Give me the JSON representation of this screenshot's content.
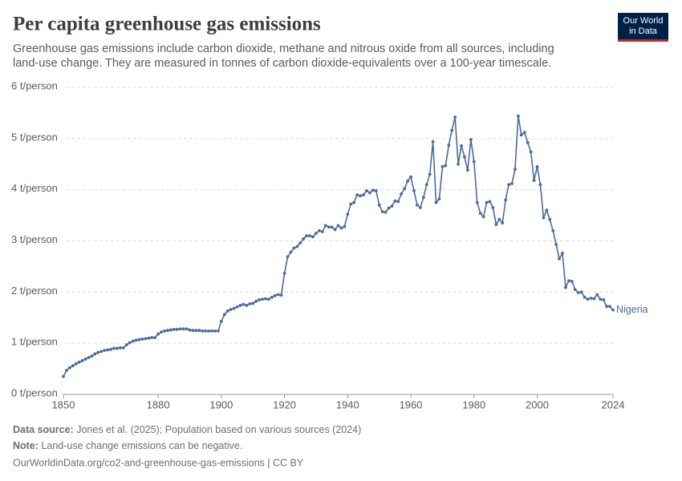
{
  "chart_data": {
    "type": "line",
    "title": "Per capita greenhouse gas emissions",
    "subtitle_lines": [
      "Greenhouse gas emissions include carbon dioxide, methane and nitrous oxide from all sources, including",
      "land-use change. They are measured in tonnes of carbon dioxide-equivalents over a 100-year timescale."
    ],
    "logo_lines": [
      "Our World",
      "in Data"
    ],
    "x": [
      1850,
      1851,
      1852,
      1853,
      1854,
      1855,
      1856,
      1857,
      1858,
      1859,
      1860,
      1861,
      1862,
      1863,
      1864,
      1865,
      1866,
      1867,
      1868,
      1869,
      1870,
      1871,
      1872,
      1873,
      1874,
      1875,
      1876,
      1877,
      1878,
      1879,
      1880,
      1881,
      1882,
      1883,
      1884,
      1885,
      1886,
      1887,
      1888,
      1889,
      1890,
      1891,
      1892,
      1893,
      1894,
      1895,
      1896,
      1897,
      1898,
      1899,
      1900,
      1901,
      1902,
      1903,
      1904,
      1905,
      1906,
      1907,
      1908,
      1909,
      1910,
      1911,
      1912,
      1913,
      1914,
      1915,
      1916,
      1917,
      1918,
      1919,
      1920,
      1921,
      1922,
      1923,
      1924,
      1925,
      1926,
      1927,
      1928,
      1929,
      1930,
      1931,
      1932,
      1933,
      1934,
      1935,
      1936,
      1937,
      1938,
      1939,
      1940,
      1941,
      1942,
      1943,
      1944,
      1945,
      1946,
      1947,
      1948,
      1949,
      1950,
      1951,
      1952,
      1953,
      1954,
      1955,
      1956,
      1957,
      1958,
      1959,
      1960,
      1961,
      1962,
      1963,
      1964,
      1965,
      1966,
      1967,
      1968,
      1969,
      1970,
      1971,
      1972,
      1973,
      1974,
      1975,
      1976,
      1977,
      1978,
      1979,
      1980,
      1981,
      1982,
      1983,
      1984,
      1985,
      1986,
      1987,
      1988,
      1989,
      1990,
      1991,
      1992,
      1993,
      1994,
      1995,
      1996,
      1997,
      1998,
      1999,
      2000,
      2001,
      2002,
      2003,
      2004,
      2005,
      2006,
      2007,
      2008,
      2009,
      2010,
      2011,
      2012,
      2013,
      2014,
      2015,
      2016,
      2017,
      2018,
      2019,
      2020,
      2021,
      2022,
      2023,
      2024
    ],
    "series": [
      {
        "name": "Nigeria",
        "color": "#4c6a9c",
        "values": [
          0.35,
          0.47,
          0.52,
          0.56,
          0.6,
          0.63,
          0.66,
          0.69,
          0.72,
          0.75,
          0.79,
          0.82,
          0.84,
          0.86,
          0.87,
          0.88,
          0.9,
          0.9,
          0.91,
          0.91,
          0.97,
          1.01,
          1.04,
          1.06,
          1.07,
          1.08,
          1.09,
          1.1,
          1.11,
          1.11,
          1.18,
          1.22,
          1.24,
          1.25,
          1.26,
          1.27,
          1.27,
          1.28,
          1.28,
          1.28,
          1.26,
          1.25,
          1.25,
          1.25,
          1.24,
          1.24,
          1.24,
          1.24,
          1.24,
          1.24,
          1.43,
          1.56,
          1.63,
          1.66,
          1.68,
          1.71,
          1.74,
          1.76,
          1.74,
          1.77,
          1.78,
          1.82,
          1.85,
          1.86,
          1.87,
          1.86,
          1.9,
          1.93,
          1.95,
          1.94,
          2.37,
          2.69,
          2.78,
          2.86,
          2.89,
          2.96,
          3.04,
          3.1,
          3.1,
          3.08,
          3.15,
          3.2,
          3.18,
          3.3,
          3.27,
          3.27,
          3.22,
          3.3,
          3.25,
          3.28,
          3.52,
          3.72,
          3.75,
          3.9,
          3.88,
          3.9,
          3.98,
          3.94,
          3.99,
          3.98,
          3.7,
          3.57,
          3.56,
          3.64,
          3.68,
          3.78,
          3.77,
          3.92,
          4.02,
          4.17,
          4.25,
          3.98,
          3.7,
          3.65,
          3.85,
          4.1,
          4.3,
          4.94,
          3.75,
          3.82,
          4.45,
          4.47,
          4.87,
          5.16,
          5.42,
          4.5,
          4.86,
          4.64,
          4.38,
          4.98,
          4.55,
          3.75,
          3.54,
          3.47,
          3.75,
          3.77,
          3.65,
          3.32,
          3.42,
          3.35,
          3.8,
          4.1,
          4.12,
          4.4,
          5.44,
          5.07,
          5.12,
          4.92,
          4.74,
          4.18,
          4.45,
          4.1,
          3.45,
          3.6,
          3.42,
          3.2,
          2.93,
          2.65,
          2.76,
          2.09,
          2.22,
          2.21,
          2.05,
          1.99,
          2.0,
          1.9,
          1.86,
          1.88,
          1.87,
          1.95,
          1.86,
          1.85,
          1.72,
          1.72,
          1.65
        ]
      }
    ],
    "xlim": [
      1850,
      2024
    ],
    "xticks": [
      1850,
      1880,
      1900,
      1920,
      1940,
      1960,
      1980,
      2000,
      2024
    ],
    "ylim": [
      0,
      6
    ],
    "yticks": [
      {
        "value": 0,
        "label": "0 t/person"
      },
      {
        "value": 1,
        "label": "1 t/person"
      },
      {
        "value": 2,
        "label": "2 t/person"
      },
      {
        "value": 3,
        "label": "3 t/person"
      },
      {
        "value": 4,
        "label": "4 t/person"
      },
      {
        "value": 5,
        "label": "5 t/person"
      },
      {
        "value": 6,
        "label": "6 t/person"
      }
    ],
    "grid": true,
    "source_label": "Data source:",
    "source": "Jones et al. (2025); Population based on various sources (2024)",
    "note_label": "Note:",
    "note": "Land-use change emissions can be negative.",
    "url": "OurWorldinData.org/co2-and-greenhouse-gas-emissions | CC BY"
  }
}
